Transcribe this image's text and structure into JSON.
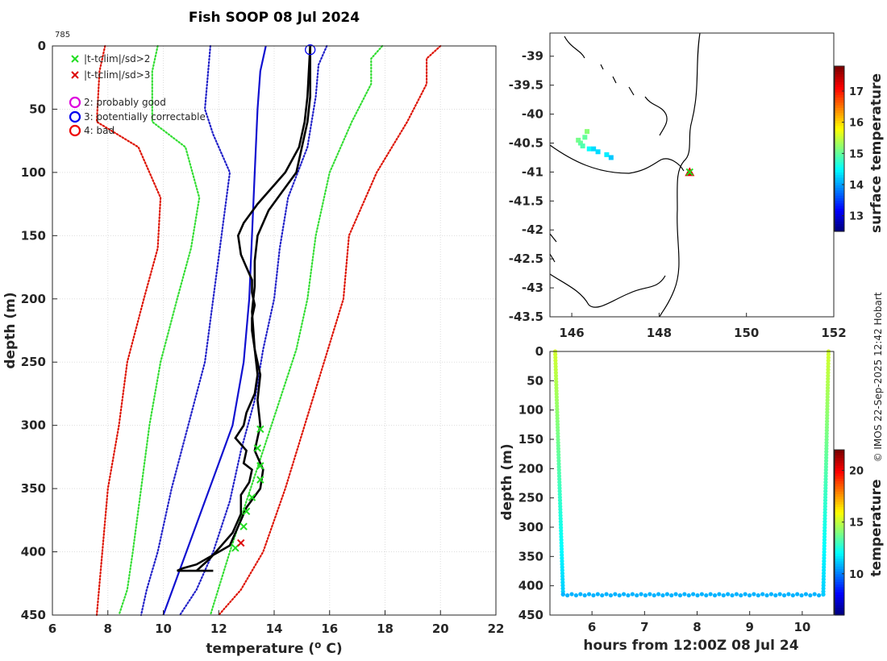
{
  "colors": {
    "clim_mean": "#1010d0",
    "sd1": "#2020c8",
    "sd2": "#33dd33",
    "sd3": "#dd1100",
    "profile": "#000000",
    "flag2_x": "#22dd22",
    "flag3_x": "#dd0000",
    "qc2": "#dd00dd",
    "qc3": "#0000ee",
    "qc4": "#ee0000",
    "grid": "#dddddd",
    "map_point": "#22dd22",
    "map_triangle": "#dd0000"
  },
  "chart_data": [
    {
      "type": "line",
      "title": "Fish SOOP 08 Jul 2024",
      "id_label": "785",
      "xlabel": "temperature (",
      "xlabel_sup": "o",
      "xlabel_end": " C)",
      "ylabel": "depth (m)",
      "xlim": [
        6,
        22
      ],
      "ylim": [
        0,
        450
      ],
      "xticks": [
        "6",
        "8",
        "10",
        "12",
        "14",
        "16",
        "18",
        "20",
        "22"
      ],
      "yticks": [
        "0",
        "50",
        "100",
        "150",
        "200",
        "250",
        "300",
        "350",
        "400",
        "450"
      ],
      "legend": [
        {
          "marker": "x",
          "color_key": "flag2_x",
          "label": "|t-tclim|/sd>2"
        },
        {
          "marker": "x",
          "color_key": "flag3_x",
          "label": "|t-tclim|/sd>3"
        },
        {
          "marker": "o",
          "color_key": "qc2",
          "label": "2: probably good"
        },
        {
          "marker": "o",
          "color_key": "qc3",
          "label": "3: potentially correctable"
        },
        {
          "marker": "o",
          "color_key": "qc4",
          "label": "4: bad"
        }
      ],
      "series": [
        {
          "name": "climatology mean",
          "style": "solid",
          "color_key": "clim_mean",
          "x": [
            13.7,
            13.5,
            13.4,
            13.3,
            13.2,
            13.1,
            12.9,
            12.5,
            12.0,
            11.5,
            11.0,
            10.5,
            10.0
          ],
          "y": [
            0,
            20,
            50,
            100,
            150,
            200,
            250,
            300,
            330,
            360,
            390,
            420,
            450
          ]
        },
        {
          "name": "mean-1sd",
          "style": "dotted",
          "color_key": "sd1",
          "x": [
            11.7,
            11.5,
            11.8,
            12.4,
            12.1,
            11.8,
            11.5,
            10.9,
            10.3,
            9.8,
            9.4,
            9.2
          ],
          "y": [
            0,
            50,
            70,
            100,
            150,
            200,
            250,
            300,
            350,
            400,
            430,
            450
          ]
        },
        {
          "name": "mean+1sd",
          "style": "dotted",
          "color_key": "sd1",
          "x": [
            15.9,
            15.6,
            15.5,
            15.2,
            14.5,
            14.2,
            14.0,
            13.6,
            13.3,
            12.8,
            12.4,
            11.8,
            11.2,
            10.6
          ],
          "y": [
            0,
            15,
            40,
            80,
            120,
            160,
            200,
            240,
            280,
            320,
            360,
            400,
            430,
            450
          ]
        },
        {
          "name": "mean-2sd",
          "style": "dotted",
          "color_key": "sd2",
          "x": [
            9.8,
            9.6,
            9.6,
            10.8,
            11.3,
            11.0,
            10.5,
            9.9,
            9.5,
            9.2,
            8.9,
            8.7,
            8.4
          ],
          "y": [
            0,
            20,
            60,
            80,
            120,
            160,
            200,
            250,
            300,
            350,
            400,
            430,
            450
          ]
        },
        {
          "name": "mean+2sd",
          "style": "dotted",
          "color_key": "sd2",
          "x": [
            17.9,
            17.5,
            17.5,
            16.8,
            16.0,
            15.5,
            15.2,
            14.8,
            14.2,
            13.6,
            13.0,
            12.4,
            11.7
          ],
          "y": [
            0,
            10,
            30,
            60,
            100,
            150,
            200,
            240,
            280,
            320,
            360,
            400,
            450
          ]
        },
        {
          "name": "mean-3sd",
          "style": "dotted",
          "color_key": "sd3",
          "x": [
            7.9,
            7.7,
            7.6,
            9.1,
            9.9,
            9.8,
            9.3,
            8.7,
            8.4,
            8.0,
            7.8,
            7.6
          ],
          "y": [
            0,
            20,
            60,
            80,
            120,
            160,
            200,
            250,
            300,
            350,
            400,
            450
          ]
        },
        {
          "name": "mean+3sd",
          "style": "dotted",
          "color_key": "sd3",
          "x": [
            20.0,
            19.5,
            19.5,
            18.8,
            17.7,
            16.7,
            16.5,
            15.8,
            15.1,
            14.4,
            13.6,
            12.8,
            12.0
          ],
          "y": [
            0,
            10,
            30,
            60,
            100,
            150,
            200,
            250,
            300,
            350,
            400,
            430,
            450
          ]
        },
        {
          "name": "profile down",
          "style": "solid",
          "color_key": "profile",
          "x": [
            15.3,
            15.3,
            15.3,
            15.2,
            15.0,
            14.8,
            14.3,
            13.8,
            13.4,
            13.3,
            13.3,
            13.2,
            13.3,
            13.5,
            13.4,
            13.5,
            13.3,
            13.6,
            13.5,
            13.0,
            12.8,
            12.6,
            12.4,
            12.0,
            11.6,
            11.2,
            10.7,
            10.5,
            11.8
          ],
          "y": [
            0,
            20,
            40,
            60,
            80,
            100,
            115,
            130,
            150,
            170,
            190,
            210,
            240,
            260,
            280,
            300,
            320,
            335,
            350,
            365,
            375,
            385,
            395,
            400,
            405,
            410,
            413,
            415,
            415
          ]
        },
        {
          "name": "profile up",
          "style": "solid",
          "color_key": "profile",
          "x": [
            11.2,
            11.7,
            12.1,
            12.5,
            12.8,
            12.8,
            13.1,
            13.2,
            12.9,
            13.0,
            12.6,
            12.9,
            13.0,
            13.3,
            13.4,
            13.3,
            13.2,
            13.2,
            13.3,
            13.2,
            13.2,
            13.0,
            12.8,
            12.7,
            12.9,
            13.4,
            14.0,
            14.4,
            14.9,
            15.1,
            15.2,
            15.3
          ],
          "y": [
            415,
            405,
            395,
            385,
            370,
            355,
            345,
            335,
            330,
            320,
            310,
            300,
            290,
            275,
            260,
            240,
            225,
            215,
            205,
            195,
            185,
            175,
            165,
            150,
            140,
            125,
            110,
            100,
            80,
            60,
            40,
            0
          ]
        }
      ],
      "flags_sd2": [
        {
          "x": 13.5,
          "y": 303
        },
        {
          "x": 13.4,
          "y": 318
        },
        {
          "x": 13.5,
          "y": 332
        },
        {
          "x": 13.5,
          "y": 343
        },
        {
          "x": 13.2,
          "y": 357
        },
        {
          "x": 13.0,
          "y": 368
        },
        {
          "x": 12.9,
          "y": 380
        },
        {
          "x": 12.6,
          "y": 397
        }
      ],
      "flags_sd3": [
        {
          "x": 12.8,
          "y": 393
        }
      ],
      "qc_marker": {
        "x": 15.3,
        "y": 3,
        "color_key": "qc3"
      }
    },
    {
      "type": "scatter",
      "title": "",
      "xlim": [
        145.5,
        152
      ],
      "ylim": [
        -43.5,
        -38.6
      ],
      "xticks": [
        "146",
        "148",
        "150",
        "152"
      ],
      "yticks": [
        "-39",
        "-39.5",
        "-40",
        "-40.5",
        "-41",
        "-41.5",
        "-42",
        "-42.5",
        "-43",
        "-43.5"
      ],
      "colorbar_label": "surface temperature",
      "colorbar_ticks": [
        "13",
        "14",
        "15",
        "16",
        "17"
      ],
      "colorbar_range": [
        12.5,
        17.8
      ],
      "points": [
        {
          "lon": 148.7,
          "lat": -41.0
        },
        {
          "lon": 146.15,
          "lat": -40.45
        },
        {
          "lon": 146.2,
          "lat": -40.5
        },
        {
          "lon": 146.25,
          "lat": -40.55
        },
        {
          "lon": 146.3,
          "lat": -40.4
        },
        {
          "lon": 146.35,
          "lat": -40.3
        },
        {
          "lon": 146.4,
          "lat": -40.6
        },
        {
          "lon": 146.5,
          "lat": -40.6
        },
        {
          "lon": 146.6,
          "lat": -40.65
        },
        {
          "lon": 146.8,
          "lat": -40.7
        },
        {
          "lon": 146.9,
          "lat": -40.75
        }
      ],
      "point_temps": [
        15.0,
        15.1,
        15.0,
        14.9,
        15.0,
        15.2,
        14.5,
        14.3,
        14.3,
        14.4,
        14.2
      ]
    },
    {
      "type": "scatter",
      "xlabel": "hours from 12:00Z 08 Jul 24",
      "ylabel": "depth (m)",
      "xlim": [
        5.2,
        10.6
      ],
      "ylim": [
        0,
        450
      ],
      "xticks": [
        "6",
        "7",
        "8",
        "9",
        "10"
      ],
      "yticks": [
        "0",
        "50",
        "100",
        "150",
        "200",
        "250",
        "300",
        "350",
        "400",
        "450"
      ],
      "colorbar_label": "temperature",
      "colorbar_ticks": [
        "10",
        "15",
        "20"
      ],
      "colorbar_range": [
        6,
        22
      ],
      "down_cast": {
        "t_start": 5.3,
        "t_end": 5.45,
        "depth_start": 0,
        "depth_end": 415,
        "temp_start": 15.3,
        "temp_end": 11.2
      },
      "bottom_track": {
        "t_start": 5.45,
        "t_end": 10.4,
        "depth": 415,
        "temp": 10.8
      },
      "up_cast": {
        "t_start": 10.4,
        "t_end": 10.5,
        "depth_start": 415,
        "depth_end": 0,
        "temp_start": 11.2,
        "temp_end": 15.3
      }
    }
  ],
  "credit": "© IMOS 22-Sep-2025 12:42 Hobart"
}
